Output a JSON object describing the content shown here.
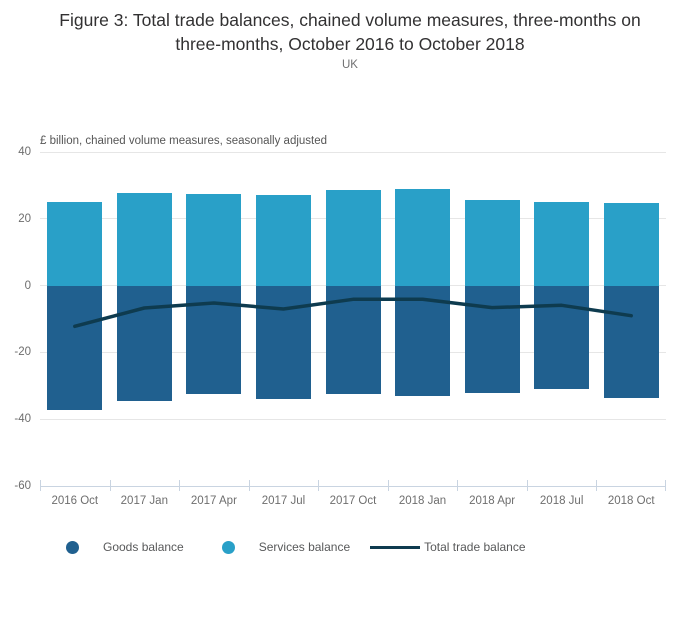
{
  "title": "Figure 3: Total trade balances, chained volume measures, three-months on three-months, October 2016 to October 2018",
  "subtitle": "UK",
  "chart_data": {
    "type": "bar",
    "subtype": "stacked-columns-with-line",
    "unit_label": "£ billion, chained volume measures, seasonally adjusted",
    "categories": [
      "2016 Oct",
      "2017 Jan",
      "2017 Apr",
      "2017 Jul",
      "2017 Oct",
      "2018 Jan",
      "2018 Apr",
      "2018 Jul",
      "2018 Oct"
    ],
    "series": [
      {
        "name": "Goods balance",
        "type": "column",
        "color": "#20608f",
        "values": [
          -37.1,
          -34.5,
          -32.5,
          -34.0,
          -32.6,
          -33.1,
          -32.2,
          -31.0,
          -33.8
        ]
      },
      {
        "name": "Services balance",
        "type": "column",
        "color": "#29a0c8",
        "values": [
          24.9,
          27.8,
          27.3,
          27.0,
          28.5,
          29.0,
          25.6,
          25.1,
          24.8
        ]
      },
      {
        "name": "Total trade balance",
        "type": "line",
        "color": "#0e3b4f",
        "values": [
          -12.2,
          -6.7,
          -5.2,
          -7.0,
          -4.1,
          -4.1,
          -6.6,
          -5.9,
          -9.0
        ]
      }
    ],
    "ylim": [
      -60,
      40
    ],
    "yticks": [
      40,
      20,
      0,
      -20,
      -40,
      -60
    ],
    "grid": true,
    "legend_position": "bottom"
  }
}
